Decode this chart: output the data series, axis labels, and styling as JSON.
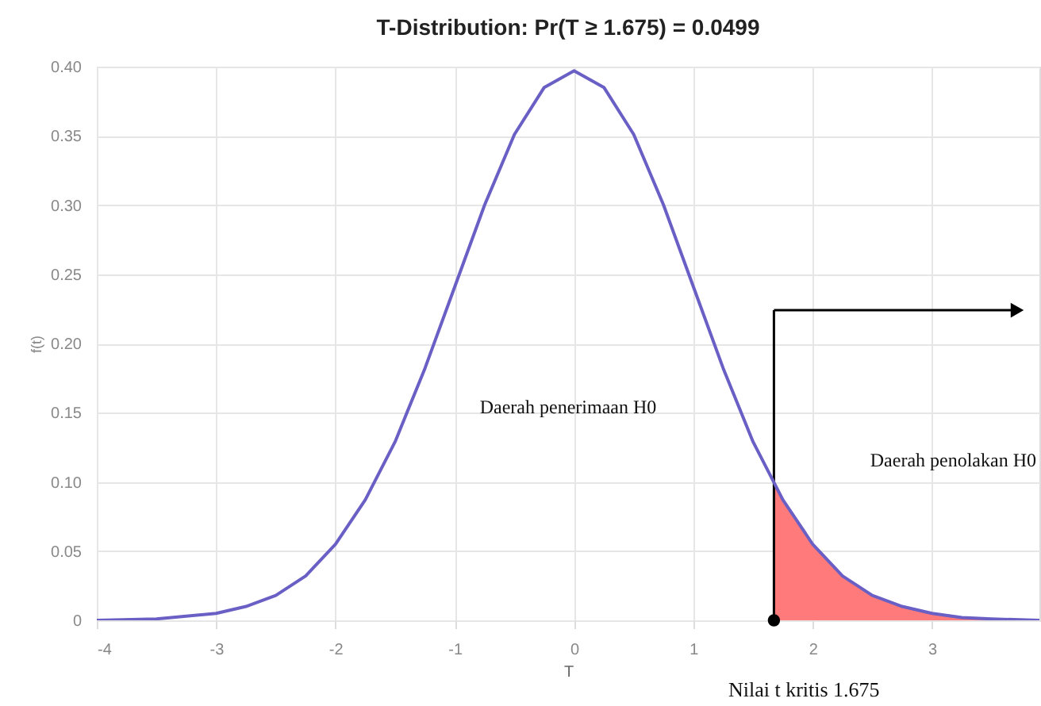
{
  "chart_data": {
    "type": "line",
    "title": "T-Distribution: Pr(T ≥ 1.675) = 0.0499",
    "xlabel": "T",
    "ylabel": "f(t)",
    "xlim": [
      -4,
      3.9
    ],
    "xticks": [
      -4,
      -3,
      -2,
      -1,
      0,
      1,
      2,
      3
    ],
    "ylim": [
      0,
      0.4
    ],
    "yticks": [
      {
        "value": 0,
        "label": "0"
      },
      {
        "value": 0.05,
        "label": "0.05"
      },
      {
        "value": 0.1,
        "label": "0.10"
      },
      {
        "value": 0.15,
        "label": "0.15"
      },
      {
        "value": 0.2,
        "label": "0.20"
      },
      {
        "value": 0.25,
        "label": "0.25"
      },
      {
        "value": 0.3,
        "label": "0.30"
      },
      {
        "value": 0.35,
        "label": "0.35"
      },
      {
        "value": 0.4,
        "label": "0.40"
      }
    ],
    "grid": true,
    "marker": "none",
    "ref_lines": [
      {
        "axis": "x",
        "value": 1.675,
        "color": "#000000"
      }
    ],
    "line_style": "solid",
    "series": [
      {
        "color": "#6a5fc4",
        "x": [
          -4,
          -3.5,
          -3,
          -2.75,
          -2.5,
          -2.25,
          -2,
          -1.75,
          -1.5,
          -1.25,
          -1,
          -0.75,
          -0.5,
          -0.25,
          0,
          0.25,
          0.5,
          0.75,
          1,
          1.25,
          1.5,
          1.75,
          2,
          2.25,
          2.5,
          2.75,
          3,
          3.25,
          3.5,
          3.9
        ],
        "values": [
          0,
          0.001,
          0.005,
          0.01,
          0.018,
          0.032,
          0.055,
          0.087,
          0.129,
          0.182,
          0.241,
          0.3,
          0.351,
          0.385,
          0.397,
          0.385,
          0.351,
          0.3,
          0.241,
          0.182,
          0.129,
          0.087,
          0.055,
          0.032,
          0.018,
          0.01,
          0.005,
          0.002,
          0.001,
          0
        ]
      },
      {
        "type": "area",
        "color": "#ff7b7b",
        "x": [
          1.675,
          1.75,
          2,
          2.25,
          2.5,
          2.75,
          3,
          3.25,
          3.5,
          3.9
        ],
        "values": [
          0.099,
          0.087,
          0.055,
          0.032,
          0.018,
          0.01,
          0.005,
          0.002,
          0.001,
          0
        ]
      },
      {
        "type": "scatter",
        "color": "#000000",
        "marker": "circle",
        "x": [
          1.675
        ],
        "values": [
          0
        ]
      }
    ],
    "annotations": [
      "Daerah penerimaan  H0",
      "Daerah penolakan H0",
      "Nilai t kritis 1.675"
    ]
  }
}
